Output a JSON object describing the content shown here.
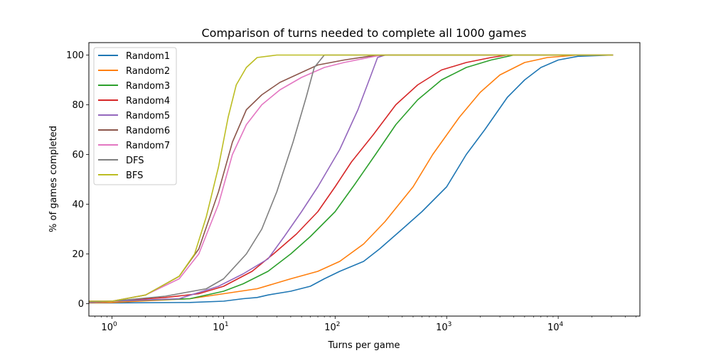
{
  "chart_data": {
    "type": "line",
    "title": "Comparison of turns needed to complete all 1000 games",
    "xlabel": "Turns per game",
    "ylabel": "% of games completed",
    "xscale": "log",
    "xlim": [
      0.62,
      54000
    ],
    "ylim": [
      -5,
      105
    ],
    "x_ticks": [
      {
        "value": 1,
        "base": "10",
        "exp": "0"
      },
      {
        "value": 10,
        "base": "10",
        "exp": "1"
      },
      {
        "value": 100,
        "base": "10",
        "exp": "2"
      },
      {
        "value": 1000,
        "base": "10",
        "exp": "3"
      },
      {
        "value": 10000,
        "base": "10",
        "exp": "4"
      }
    ],
    "y_ticks": [
      0,
      20,
      40,
      60,
      80,
      100
    ],
    "legend_position": "top-left",
    "grid": false,
    "series": [
      {
        "name": "Random1",
        "color": "#1f77b4",
        "points": [
          [
            0.62,
            0.3
          ],
          [
            1,
            0.3
          ],
          [
            5,
            0.5
          ],
          [
            10,
            1
          ],
          [
            15,
            2
          ],
          [
            20,
            2.5
          ],
          [
            25,
            3.5
          ],
          [
            40,
            5
          ],
          [
            60,
            7
          ],
          [
            80,
            10
          ],
          [
            110,
            13
          ],
          [
            180,
            17
          ],
          [
            250,
            22
          ],
          [
            400,
            30
          ],
          [
            600,
            37
          ],
          [
            1000,
            47
          ],
          [
            1500,
            60
          ],
          [
            2200,
            70
          ],
          [
            3500,
            83
          ],
          [
            5000,
            90
          ],
          [
            7000,
            95
          ],
          [
            10000,
            98
          ],
          [
            15000,
            99.5
          ],
          [
            31000,
            100
          ]
        ]
      },
      {
        "name": "Random2",
        "color": "#ff7f0e",
        "points": [
          [
            0.62,
            0.3
          ],
          [
            1,
            0.5
          ],
          [
            5,
            2
          ],
          [
            10,
            4
          ],
          [
            20,
            6
          ],
          [
            40,
            10
          ],
          [
            70,
            13
          ],
          [
            110,
            17
          ],
          [
            180,
            24
          ],
          [
            280,
            33
          ],
          [
            500,
            47
          ],
          [
            750,
            60
          ],
          [
            1300,
            75
          ],
          [
            2000,
            85
          ],
          [
            3000,
            92
          ],
          [
            5000,
            97
          ],
          [
            8000,
            99
          ],
          [
            15000,
            100
          ],
          [
            31000,
            100
          ]
        ]
      },
      {
        "name": "Random3",
        "color": "#2ca02c",
        "points": [
          [
            0.62,
            0.5
          ],
          [
            1,
            1
          ],
          [
            5,
            2
          ],
          [
            10,
            5
          ],
          [
            15,
            8
          ],
          [
            25,
            13
          ],
          [
            40,
            20
          ],
          [
            60,
            27
          ],
          [
            100,
            37
          ],
          [
            150,
            48
          ],
          [
            230,
            60
          ],
          [
            350,
            72
          ],
          [
            550,
            82
          ],
          [
            900,
            90
          ],
          [
            1500,
            95
          ],
          [
            2500,
            98
          ],
          [
            4000,
            100
          ],
          [
            31000,
            100
          ]
        ]
      },
      {
        "name": "Random4",
        "color": "#d62728",
        "points": [
          [
            0.62,
            0.7
          ],
          [
            1,
            1
          ],
          [
            3,
            2.5
          ],
          [
            6,
            4
          ],
          [
            10,
            7
          ],
          [
            18,
            13
          ],
          [
            28,
            20
          ],
          [
            45,
            28
          ],
          [
            70,
            37
          ],
          [
            100,
            47
          ],
          [
            140,
            57
          ],
          [
            220,
            68
          ],
          [
            350,
            80
          ],
          [
            550,
            88
          ],
          [
            900,
            94
          ],
          [
            1500,
            97
          ],
          [
            2500,
            99
          ],
          [
            3500,
            100
          ],
          [
            31000,
            100
          ]
        ]
      },
      {
        "name": "Random5",
        "color": "#9467bd",
        "points": [
          [
            0.62,
            0.5
          ],
          [
            1,
            1
          ],
          [
            4,
            2
          ],
          [
            9,
            7
          ],
          [
            15,
            12
          ],
          [
            25,
            18
          ],
          [
            35,
            27
          ],
          [
            50,
            37
          ],
          [
            70,
            47
          ],
          [
            110,
            62
          ],
          [
            160,
            78
          ],
          [
            210,
            92
          ],
          [
            240,
            99
          ],
          [
            280,
            100
          ],
          [
            31000,
            100
          ]
        ]
      },
      {
        "name": "Random6",
        "color": "#8c564b",
        "points": [
          [
            0.62,
            1
          ],
          [
            1,
            1
          ],
          [
            2,
            3.5
          ],
          [
            4,
            11
          ],
          [
            6,
            22
          ],
          [
            9,
            45
          ],
          [
            12,
            65
          ],
          [
            16,
            78
          ],
          [
            22,
            84
          ],
          [
            32,
            89
          ],
          [
            50,
            93
          ],
          [
            70,
            96
          ],
          [
            120,
            98
          ],
          [
            200,
            99.5
          ],
          [
            300,
            100
          ],
          [
            31000,
            100
          ]
        ]
      },
      {
        "name": "Random7",
        "color": "#e377c2",
        "points": [
          [
            0.62,
            1
          ],
          [
            1,
            1
          ],
          [
            2,
            3.5
          ],
          [
            4,
            10
          ],
          [
            6,
            20
          ],
          [
            9,
            40
          ],
          [
            12,
            60
          ],
          [
            16,
            72
          ],
          [
            22,
            80
          ],
          [
            32,
            86
          ],
          [
            50,
            91
          ],
          [
            80,
            95
          ],
          [
            120,
            97
          ],
          [
            200,
            99
          ],
          [
            260,
            100
          ],
          [
            31000,
            100
          ]
        ]
      },
      {
        "name": "DFS",
        "color": "#7f7f7f",
        "points": [
          [
            0.62,
            0.8
          ],
          [
            1,
            1
          ],
          [
            3,
            3
          ],
          [
            7,
            6
          ],
          [
            10,
            10
          ],
          [
            16,
            20
          ],
          [
            22,
            30
          ],
          [
            30,
            45
          ],
          [
            42,
            65
          ],
          [
            55,
            83
          ],
          [
            65,
            95
          ],
          [
            80,
            100
          ],
          [
            31000,
            100
          ]
        ]
      },
      {
        "name": "BFS",
        "color": "#bcbd22",
        "points": [
          [
            0.62,
            1
          ],
          [
            1,
            1
          ],
          [
            2,
            3.5
          ],
          [
            4,
            11
          ],
          [
            5.5,
            20
          ],
          [
            7,
            35
          ],
          [
            9,
            55
          ],
          [
            11,
            75
          ],
          [
            13,
            88
          ],
          [
            16,
            95
          ],
          [
            20,
            99
          ],
          [
            30,
            100
          ],
          [
            31000,
            100
          ]
        ]
      }
    ]
  }
}
